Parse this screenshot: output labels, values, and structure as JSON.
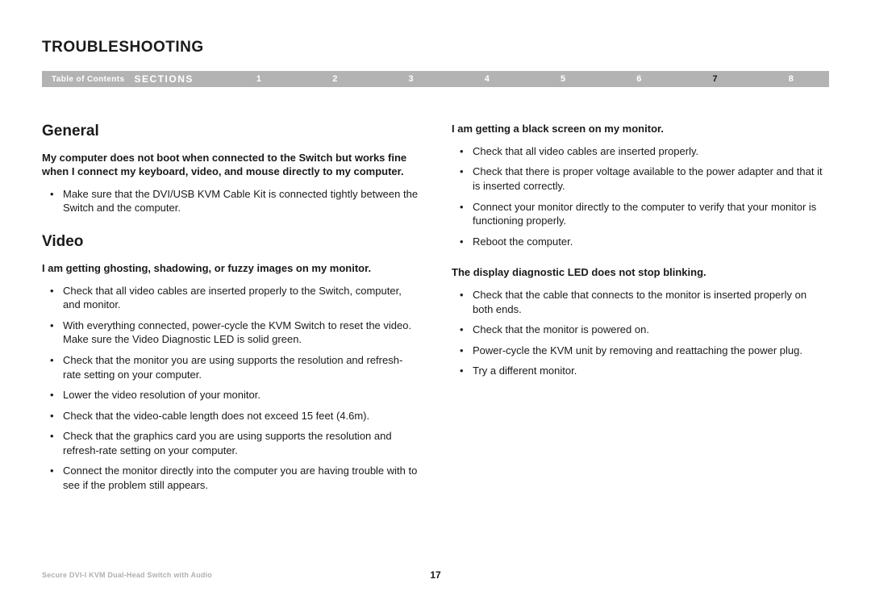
{
  "title": "TROUBLESHOOTING",
  "nav": {
    "toc": "Table of Contents",
    "sections_label": "SECTIONS",
    "items": [
      "1",
      "2",
      "3",
      "4",
      "5",
      "6",
      "7",
      "8"
    ],
    "active_index": 6,
    "bar_bg": "#b3b3b3",
    "text_color": "#ffffff",
    "active_color": "#1a1a1a"
  },
  "left": {
    "h_general": "General",
    "q1": "My computer does not boot when connected to the Switch but works fine when I connect my keyboard, video, and mouse directly to my computer.",
    "q1_items": [
      "Make sure that the DVI/USB KVM Cable Kit is connected tightly between the Switch and the computer."
    ],
    "h_video": "Video",
    "q2": "I am getting ghosting, shadowing, or fuzzy images on my monitor.",
    "q2_items": [
      "Check that all video cables are inserted properly to the Switch, computer, and monitor.",
      "With everything connected, power-cycle the KVM Switch to reset the video. Make sure the Video Diagnostic LED is solid green.",
      "Check that the monitor you are using supports the resolution and refresh-rate setting on your computer.",
      "Lower the video resolution of your monitor.",
      "Check that the video-cable length does not exceed 15 feet (4.6m).",
      "Check that the graphics card you are using supports the resolution and refresh-rate setting on your computer.",
      "Connect the monitor directly into the computer you are having trouble with to see if the problem still appears."
    ]
  },
  "right": {
    "q3": "I am getting a black screen on my monitor.",
    "q3_items": [
      "Check that all video cables are inserted properly.",
      "Check that there is proper voltage available to the power adapter and that it is inserted correctly.",
      "Connect your monitor directly to the computer to verify that your monitor is functioning properly.",
      "Reboot the computer."
    ],
    "q4": "The display diagnostic LED does not stop blinking.",
    "q4_items": [
      "Check that the cable that connects to the monitor is inserted properly on both ends.",
      "Check that the monitor is powered on.",
      "Power-cycle the KVM unit by removing and reattaching the power plug.",
      "Try a different monitor."
    ]
  },
  "footer": {
    "product": "Secure DVI-I KVM Dual-Head Switch with Audio",
    "page": "17"
  },
  "style": {
    "page_bg": "#ffffff",
    "text_color": "#1a1a1a",
    "footer_muted": "#b0b0b0",
    "title_fontsize": 19,
    "h2_fontsize": 19,
    "body_fontsize": 13,
    "nav_fontsize": 10
  }
}
